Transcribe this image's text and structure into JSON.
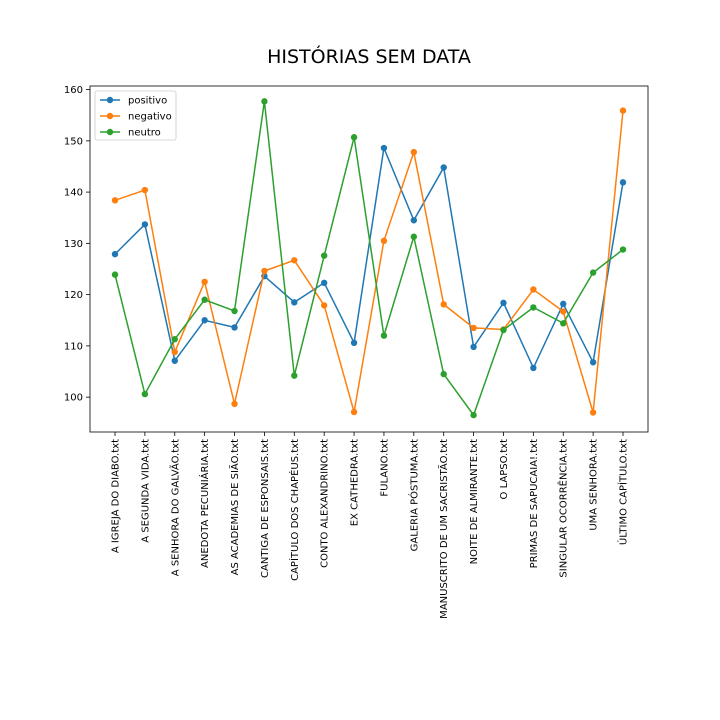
{
  "chart_data": {
    "type": "line",
    "title": "HISTÓRIAS SEM DATA",
    "xlabel": "",
    "ylabel": "",
    "categories": [
      "A IGREJA DO DIABO.txt",
      "A SEGUNDA VIDA.txt",
      "A SENHORA DO GALVÃO.txt",
      "ANEDOTA PECUNIÁRIA.txt",
      "AS ACADEMIAS DE SIÃO.txt",
      "CANTIGA DE ESPONSAIS.txt",
      "CAPÍTULO DOS CHAPÉUS.txt",
      "CONTO ALEXANDRINO.txt",
      "EX CATHEDRA.txt",
      "FULANO.txt",
      "GALERIA PÓSTUMA.txt",
      "MANUSCRITO DE UM SACRISTÃO.txt",
      "NOITE DE ALMIRANTE.txt",
      "O LAPSO.txt",
      "PRIMAS DE SAPUCAIA!.txt",
      "SINGULAR OCORRÊNCIA.txt",
      "UMA SENHORA.txt",
      "ÚLTIMO CAPÍTULO.txt"
    ],
    "ylim": [
      93.2,
      160.7
    ],
    "yticks": [
      100,
      110,
      120,
      130,
      140,
      150,
      160
    ],
    "grid": false,
    "legend_position": "top-left",
    "series": [
      {
        "name": "positivo",
        "color": "#1f77b4",
        "values": [
          127.9,
          133.7,
          107.1,
          115.0,
          113.6,
          123.6,
          118.5,
          122.3,
          110.6,
          148.6,
          134.5,
          144.8,
          109.8,
          118.4,
          105.7,
          118.2,
          106.8,
          141.9
        ]
      },
      {
        "name": "negativo",
        "color": "#ff7f0e",
        "values": [
          138.4,
          140.4,
          108.8,
          122.5,
          98.7,
          124.6,
          126.7,
          117.9,
          97.1,
          130.5,
          147.8,
          118.1,
          113.5,
          113.2,
          121.0,
          116.7,
          97.0,
          155.9
        ]
      },
      {
        "name": "neutro",
        "color": "#2ca02c",
        "values": [
          123.9,
          100.6,
          111.3,
          119.0,
          116.8,
          157.7,
          104.2,
          127.6,
          150.7,
          112.0,
          131.3,
          104.5,
          96.5,
          113.1,
          117.5,
          114.4,
          124.3,
          128.8
        ]
      }
    ]
  }
}
